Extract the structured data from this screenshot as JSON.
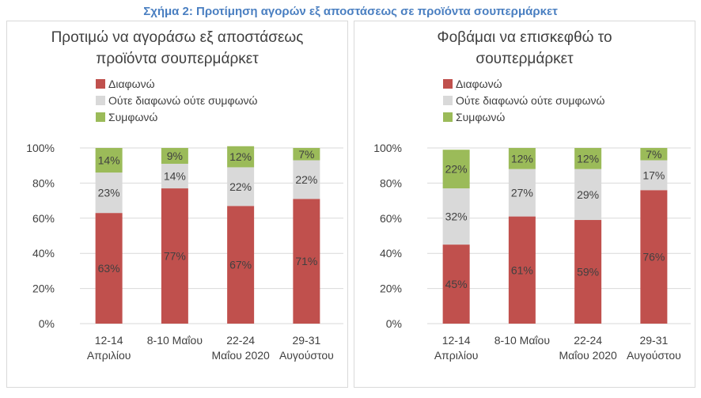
{
  "figure_title": "Σχήμα 2: Προτίμηση αγορών εξ αποστάσεως σε προϊόντα σουπερμάρκετ",
  "colors": {
    "disagree": "#c0504d",
    "neutral": "#d9d9d9",
    "agree": "#9bbb59",
    "grid": "#d9d9d9",
    "text": "#404040",
    "title_blue": "#4a7fc1"
  },
  "chart_data": [
    {
      "type": "bar",
      "stacked": true,
      "title_lines": [
        "Προτιμώ να αγοράσω εξ αποστάσεως",
        "προϊόντα σουπερμάρκετ"
      ],
      "categories": [
        [
          "12-14",
          "Απριλίου"
        ],
        [
          "8-10 Μαΐου",
          ""
        ],
        [
          "22-24",
          "Μαΐου 2020"
        ],
        [
          "29-31",
          "Αυγούστου"
        ]
      ],
      "series": [
        {
          "name": "Διαφωνώ",
          "values": [
            63,
            77,
            67,
            71
          ]
        },
        {
          "name": "Ούτε διαφωνώ ούτε συμφωνώ",
          "values": [
            23,
            14,
            22,
            22
          ]
        },
        {
          "name": "Συμφωνώ",
          "values": [
            14,
            9,
            12,
            7
          ]
        }
      ],
      "ylim": [
        0,
        100
      ],
      "yticks": [
        "0%",
        "20%",
        "40%",
        "60%",
        "80%",
        "100%"
      ],
      "legend_position": "top-left",
      "grid": true
    },
    {
      "type": "bar",
      "stacked": true,
      "title_lines": [
        "Φοβάμαι να επισκεφθώ το",
        "σουπερμάρκετ"
      ],
      "categories": [
        [
          "12-14",
          "Απριλίου"
        ],
        [
          "8-10 Μαΐου",
          ""
        ],
        [
          "22-24",
          "Μαΐου 2020"
        ],
        [
          "29-31",
          "Αυγούστου"
        ]
      ],
      "series": [
        {
          "name": "Διαφωνώ",
          "values": [
            45,
            61,
            59,
            76
          ]
        },
        {
          "name": "Ούτε διαφωνώ ούτε συμφωνώ",
          "values": [
            32,
            27,
            29,
            17
          ]
        },
        {
          "name": "Συμφωνώ",
          "values": [
            22,
            12,
            12,
            7
          ]
        }
      ],
      "ylim": [
        0,
        100
      ],
      "yticks": [
        "0%",
        "20%",
        "40%",
        "60%",
        "80%",
        "100%"
      ],
      "legend_position": "top-left",
      "grid": true
    }
  ]
}
